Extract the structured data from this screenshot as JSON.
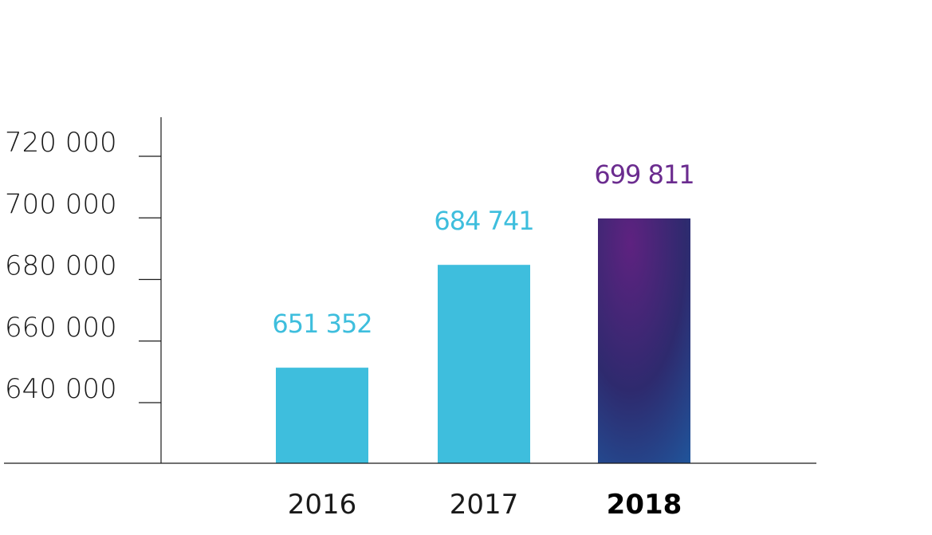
{
  "chart_data": {
    "type": "bar",
    "categories": [
      "2016",
      "2017",
      "2018"
    ],
    "values": [
      651352,
      684741,
      699811
    ],
    "value_labels": [
      "651 352",
      "684 741",
      "699 811"
    ],
    "highlight_category": "2018",
    "ylim": [
      620000,
      732000
    ],
    "yticks": [
      640000,
      660000,
      680000,
      700000,
      720000
    ],
    "ytick_labels": [
      "640 000",
      "660 000",
      "680 000",
      "700 000",
      "720 000"
    ],
    "grid": false,
    "title": "",
    "xlabel": "",
    "ylabel": "",
    "colors": {
      "bar": "#3ebedd",
      "bar_label": "#3ebedd",
      "highlight_bar_start": "#5e2280",
      "highlight_bar_mid": "#2e2a6e",
      "highlight_bar_end": "#20549a",
      "highlight_label": "#6b2c8f",
      "axis": "#1a1a1a"
    }
  }
}
